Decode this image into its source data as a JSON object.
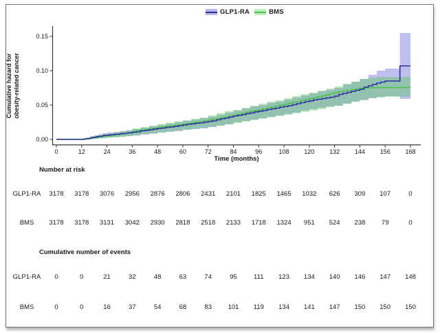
{
  "chart_data": {
    "type": "line",
    "title": "",
    "xlabel": "Time (months)",
    "ylabel_line1": "Cumulative hazard for",
    "ylabel_line2": "obesity-related cancer",
    "xlim": [
      0,
      168
    ],
    "ylim": [
      0,
      0.15
    ],
    "x_ticks": [
      0,
      12,
      24,
      36,
      48,
      60,
      72,
      84,
      96,
      108,
      120,
      132,
      144,
      156,
      168
    ],
    "y_ticks": [
      {
        "value": 0.0,
        "label": "0.00"
      },
      {
        "value": 0.05,
        "label": "0.05"
      },
      {
        "value": 0.1,
        "label": "0.10"
      },
      {
        "value": 0.15,
        "label": "0.15"
      }
    ],
    "legend": [
      {
        "label": "GLP1-RA",
        "line_color": "#2d2d9e",
        "band_color": "#b9b9ec"
      },
      {
        "label": "BMS",
        "line_color": "#49c04f",
        "band_color": "#b9edb9"
      }
    ],
    "series": [
      {
        "name": "GLP1-RA",
        "line_color": "#2d2d9e",
        "band_fill": "#5c5cd6",
        "band_opacity": 0.4,
        "steps": [
          [
            0,
            0
          ],
          [
            13,
            0.0005
          ],
          [
            14,
            0.001
          ],
          [
            16,
            0.002
          ],
          [
            17,
            0.003
          ],
          [
            19,
            0.004
          ],
          [
            20,
            0.0045
          ],
          [
            22,
            0.0055
          ],
          [
            23,
            0.006
          ],
          [
            25,
            0.0065
          ],
          [
            26,
            0.007
          ],
          [
            28,
            0.0075
          ],
          [
            30,
            0.008
          ],
          [
            31,
            0.0085
          ],
          [
            33,
            0.009
          ],
          [
            34,
            0.0095
          ],
          [
            36,
            0.0105
          ],
          [
            38,
            0.011
          ],
          [
            40,
            0.0125
          ],
          [
            42,
            0.013
          ],
          [
            44,
            0.014
          ],
          [
            46,
            0.015
          ],
          [
            48,
            0.016
          ],
          [
            50,
            0.0165
          ],
          [
            52,
            0.0175
          ],
          [
            54,
            0.018
          ],
          [
            56,
            0.019
          ],
          [
            58,
            0.02
          ],
          [
            60,
            0.021
          ],
          [
            62,
            0.022
          ],
          [
            64,
            0.0225
          ],
          [
            66,
            0.0235
          ],
          [
            68,
            0.024
          ],
          [
            70,
            0.025
          ],
          [
            72,
            0.026
          ],
          [
            74,
            0.027
          ],
          [
            76,
            0.0285
          ],
          [
            78,
            0.03
          ],
          [
            80,
            0.031
          ],
          [
            82,
            0.0325
          ],
          [
            84,
            0.034
          ],
          [
            86,
            0.035
          ],
          [
            88,
            0.036
          ],
          [
            90,
            0.0375
          ],
          [
            92,
            0.0385
          ],
          [
            94,
            0.04
          ],
          [
            96,
            0.041
          ],
          [
            98,
            0.042
          ],
          [
            100,
            0.0435
          ],
          [
            102,
            0.0445
          ],
          [
            104,
            0.0455
          ],
          [
            106,
            0.047
          ],
          [
            108,
            0.048
          ],
          [
            110,
            0.049
          ],
          [
            112,
            0.0505
          ],
          [
            114,
            0.052
          ],
          [
            116,
            0.0535
          ],
          [
            118,
            0.055
          ],
          [
            120,
            0.056
          ],
          [
            122,
            0.0575
          ],
          [
            124,
            0.0585
          ],
          [
            126,
            0.0595
          ],
          [
            128,
            0.0605
          ],
          [
            130,
            0.0615
          ],
          [
            132,
            0.063
          ],
          [
            134,
            0.0655
          ],
          [
            136,
            0.067
          ],
          [
            138,
            0.0685
          ],
          [
            140,
            0.07
          ],
          [
            142,
            0.0715
          ],
          [
            144,
            0.073
          ],
          [
            146,
            0.076
          ],
          [
            148,
            0.078
          ],
          [
            150,
            0.08
          ],
          [
            152,
            0.082
          ],
          [
            154,
            0.0835
          ],
          [
            156,
            0.085
          ],
          [
            163,
            0.107
          ],
          [
            168,
            0.107
          ]
        ],
        "band": [
          [
            0,
            0,
            0
          ],
          [
            12,
            0,
            0.0005
          ],
          [
            13,
            0,
            0.0015
          ],
          [
            14,
            0,
            0.0025
          ],
          [
            16,
            0.0005,
            0.0045
          ],
          [
            18,
            0.001,
            0.006
          ],
          [
            20,
            0.0015,
            0.0075
          ],
          [
            22,
            0.002,
            0.009
          ],
          [
            24,
            0.003,
            0.01
          ],
          [
            27,
            0.0035,
            0.011
          ],
          [
            30,
            0.004,
            0.012
          ],
          [
            33,
            0.005,
            0.0135
          ],
          [
            36,
            0.0055,
            0.015
          ],
          [
            40,
            0.007,
            0.017
          ],
          [
            44,
            0.008,
            0.019
          ],
          [
            48,
            0.01,
            0.021
          ],
          [
            52,
            0.011,
            0.023
          ],
          [
            56,
            0.012,
            0.025
          ],
          [
            60,
            0.014,
            0.027
          ],
          [
            64,
            0.015,
            0.029
          ],
          [
            68,
            0.016,
            0.031
          ],
          [
            72,
            0.018,
            0.033
          ],
          [
            76,
            0.02,
            0.036
          ],
          [
            80,
            0.022,
            0.039
          ],
          [
            84,
            0.025,
            0.042
          ],
          [
            88,
            0.027,
            0.045
          ],
          [
            92,
            0.029,
            0.048
          ],
          [
            96,
            0.031,
            0.05
          ],
          [
            100,
            0.033,
            0.053
          ],
          [
            104,
            0.035,
            0.055
          ],
          [
            108,
            0.037,
            0.058
          ],
          [
            112,
            0.039,
            0.061
          ],
          [
            116,
            0.042,
            0.064
          ],
          [
            120,
            0.044,
            0.067
          ],
          [
            124,
            0.046,
            0.07
          ],
          [
            128,
            0.048,
            0.072
          ],
          [
            132,
            0.049,
            0.075
          ],
          [
            136,
            0.052,
            0.08
          ],
          [
            140,
            0.055,
            0.084
          ],
          [
            144,
            0.057,
            0.088
          ],
          [
            148,
            0.06,
            0.094
          ],
          [
            152,
            0.062,
            0.1
          ],
          [
            156,
            0.063,
            0.103
          ],
          [
            163,
            0.059,
            0.155
          ],
          [
            168,
            0.059,
            0.155
          ]
        ]
      },
      {
        "name": "BMS",
        "line_color": "#49c04f",
        "band_fill": "#55c855",
        "band_opacity": 0.4,
        "steps": [
          [
            0,
            0
          ],
          [
            13,
            0.0005
          ],
          [
            15,
            0.001
          ],
          [
            16,
            0.0015
          ],
          [
            18,
            0.0025
          ],
          [
            20,
            0.0035
          ],
          [
            22,
            0.0045
          ],
          [
            24,
            0.005
          ],
          [
            26,
            0.006
          ],
          [
            28,
            0.007
          ],
          [
            30,
            0.008
          ],
          [
            32,
            0.009
          ],
          [
            34,
            0.01
          ],
          [
            36,
            0.0115
          ],
          [
            38,
            0.0125
          ],
          [
            40,
            0.0135
          ],
          [
            42,
            0.0145
          ],
          [
            44,
            0.0155
          ],
          [
            46,
            0.016
          ],
          [
            48,
            0.017
          ],
          [
            50,
            0.018
          ],
          [
            52,
            0.019
          ],
          [
            54,
            0.0195
          ],
          [
            56,
            0.0205
          ],
          [
            58,
            0.021
          ],
          [
            60,
            0.022
          ],
          [
            62,
            0.023
          ],
          [
            64,
            0.024
          ],
          [
            66,
            0.025
          ],
          [
            68,
            0.026
          ],
          [
            70,
            0.027
          ],
          [
            72,
            0.028
          ],
          [
            74,
            0.0295
          ],
          [
            76,
            0.0305
          ],
          [
            78,
            0.0315
          ],
          [
            80,
            0.033
          ],
          [
            82,
            0.034
          ],
          [
            84,
            0.035
          ],
          [
            86,
            0.0365
          ],
          [
            88,
            0.038
          ],
          [
            90,
            0.0395
          ],
          [
            92,
            0.041
          ],
          [
            94,
            0.042
          ],
          [
            96,
            0.043
          ],
          [
            98,
            0.0445
          ],
          [
            100,
            0.046
          ],
          [
            102,
            0.047
          ],
          [
            104,
            0.0485
          ],
          [
            106,
            0.05
          ],
          [
            108,
            0.051
          ],
          [
            110,
            0.0525
          ],
          [
            112,
            0.054
          ],
          [
            114,
            0.055
          ],
          [
            116,
            0.0565
          ],
          [
            118,
            0.058
          ],
          [
            120,
            0.059
          ],
          [
            122,
            0.0605
          ],
          [
            124,
            0.062
          ],
          [
            126,
            0.0635
          ],
          [
            128,
            0.065
          ],
          [
            130,
            0.0665
          ],
          [
            132,
            0.068
          ],
          [
            134,
            0.0695
          ],
          [
            136,
            0.0705
          ],
          [
            138,
            0.0715
          ],
          [
            140,
            0.0725
          ],
          [
            142,
            0.0735
          ],
          [
            144,
            0.0745
          ],
          [
            146,
            0.075
          ],
          [
            150,
            0.0755
          ],
          [
            168,
            0.0755
          ]
        ],
        "band": [
          [
            0,
            0,
            0
          ],
          [
            12,
            0,
            0.0005
          ],
          [
            13,
            0,
            0.0015
          ],
          [
            14,
            0,
            0.0025
          ],
          [
            16,
            0.0005,
            0.004
          ],
          [
            18,
            0.001,
            0.0055
          ],
          [
            20,
            0.0015,
            0.0065
          ],
          [
            22,
            0.002,
            0.0075
          ],
          [
            24,
            0.0025,
            0.0085
          ],
          [
            27,
            0.003,
            0.01
          ],
          [
            30,
            0.0035,
            0.0115
          ],
          [
            33,
            0.0045,
            0.013
          ],
          [
            36,
            0.006,
            0.016
          ],
          [
            40,
            0.0075,
            0.018
          ],
          [
            44,
            0.009,
            0.02
          ],
          [
            48,
            0.01,
            0.0225
          ],
          [
            52,
            0.0115,
            0.0245
          ],
          [
            56,
            0.013,
            0.0265
          ],
          [
            60,
            0.014,
            0.028
          ],
          [
            64,
            0.0155,
            0.03
          ],
          [
            68,
            0.017,
            0.032
          ],
          [
            72,
            0.018,
            0.035
          ],
          [
            76,
            0.02,
            0.038
          ],
          [
            80,
            0.022,
            0.041
          ],
          [
            84,
            0.024,
            0.043
          ],
          [
            88,
            0.026,
            0.046
          ],
          [
            92,
            0.028,
            0.049
          ],
          [
            96,
            0.03,
            0.052
          ],
          [
            100,
            0.032,
            0.055
          ],
          [
            104,
            0.034,
            0.057
          ],
          [
            108,
            0.036,
            0.06
          ],
          [
            112,
            0.038,
            0.063
          ],
          [
            116,
            0.04,
            0.066
          ],
          [
            120,
            0.042,
            0.068
          ],
          [
            124,
            0.044,
            0.071
          ],
          [
            128,
            0.047,
            0.074
          ],
          [
            132,
            0.049,
            0.077
          ],
          [
            136,
            0.052,
            0.081
          ],
          [
            140,
            0.055,
            0.084
          ],
          [
            144,
            0.058,
            0.088
          ],
          [
            148,
            0.06,
            0.09
          ],
          [
            152,
            0.061,
            0.091
          ],
          [
            156,
            0.062,
            0.091
          ],
          [
            168,
            0.062,
            0.091
          ]
        ]
      }
    ],
    "risk_table": {
      "number_at_risk_header": "Number at risk",
      "events_header": "Cumulative number of events",
      "time_points": [
        0,
        12,
        24,
        36,
        48,
        60,
        72,
        84,
        96,
        108,
        120,
        132,
        144,
        156,
        168
      ],
      "number_at_risk": [
        {
          "label": "GLP1-RA",
          "values": [
            3178,
            3178,
            3076,
            2956,
            2876,
            2806,
            2431,
            2101,
            1825,
            1465,
            1032,
            626,
            309,
            107,
            0
          ]
        },
        {
          "label": "BMS",
          "values": [
            3178,
            3178,
            3131,
            3042,
            2930,
            2818,
            2518,
            2133,
            1718,
            1324,
            951,
            524,
            238,
            79,
            0
          ]
        }
      ],
      "cumulative_events": [
        {
          "label": "GLP1-RA",
          "values": [
            0,
            0,
            21,
            32,
            48,
            63,
            74,
            95,
            111,
            123,
            134,
            140,
            146,
            147,
            148
          ]
        },
        {
          "label": "BMS",
          "values": [
            0,
            0,
            16,
            37,
            54,
            68,
            83,
            101,
            119,
            134,
            141,
            147,
            150,
            150,
            150
          ]
        }
      ]
    }
  }
}
